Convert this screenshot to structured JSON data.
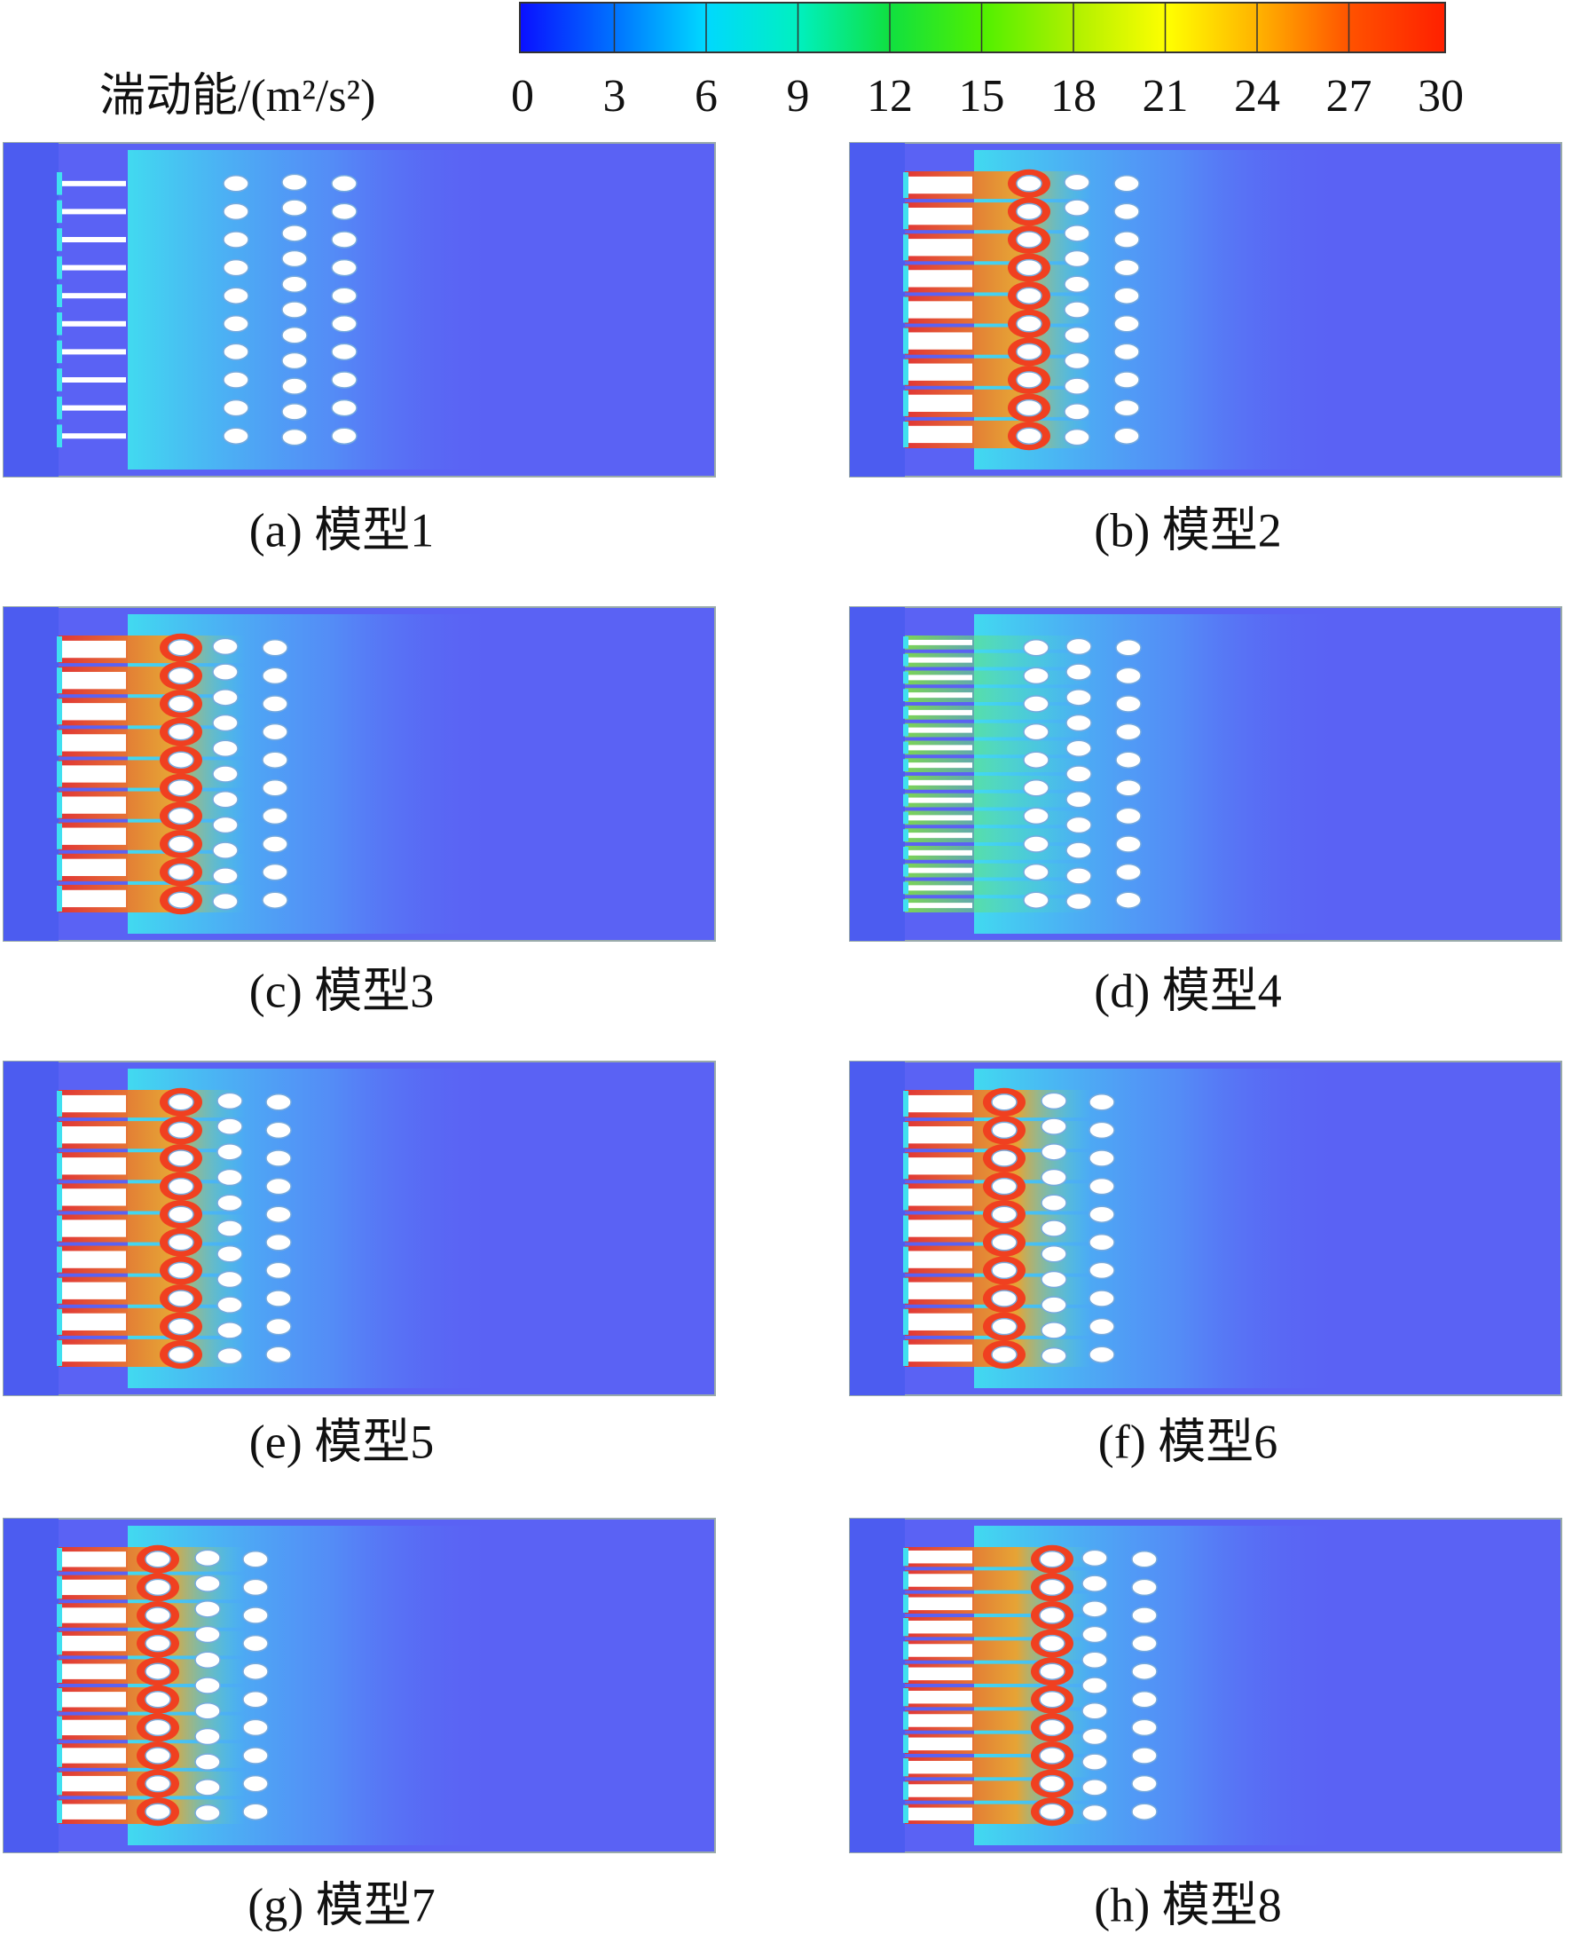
{
  "colorbar": {
    "label": "湍动能/(m²/s²)",
    "ticks": [
      "0",
      "3",
      "6",
      "9",
      "12",
      "15",
      "18",
      "21",
      "24",
      "27",
      "30"
    ],
    "colors": [
      "#0a10ff",
      "#0070ff",
      "#00d8ff",
      "#00f0c0",
      "#10e040",
      "#50f000",
      "#b0f000",
      "#ffff00",
      "#ffb000",
      "#ff5000",
      "#ff2000"
    ]
  },
  "panels": [
    {
      "caption": "(a) 模型1"
    },
    {
      "caption": "(b) 模型2"
    },
    {
      "caption": "(c) 模型3"
    },
    {
      "caption": "(d) 模型4"
    },
    {
      "caption": "(e) 模型5"
    },
    {
      "caption": "(f) 模型6"
    },
    {
      "caption": "(g) 模型7"
    },
    {
      "caption": "(h) 模型8"
    }
  ]
}
